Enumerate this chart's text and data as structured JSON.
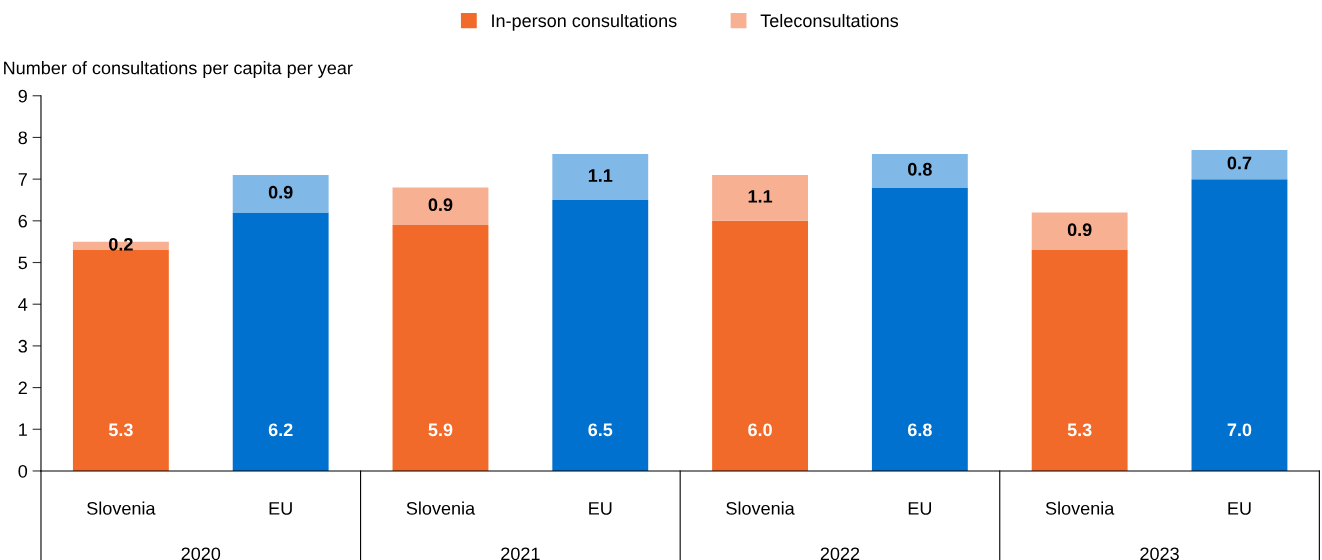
{
  "chart_data": {
    "type": "bar",
    "stacked": true,
    "ylabel": "Number of consultations per capita per year",
    "categories": [
      "Slovenia",
      "EU",
      "Slovenia",
      "EU",
      "Slovenia",
      "EU",
      "Slovenia",
      "EU"
    ],
    "annotations": [
      "2020",
      "2021",
      "2022",
      "2023"
    ],
    "series": [
      {
        "name": "In-person consultations",
        "color": "#f26a2a",
        "colors": [
          "#f26a2a",
          "#0071ce",
          "#f26a2a",
          "#0071ce",
          "#f26a2a",
          "#0071ce",
          "#f26a2a",
          "#0071ce"
        ],
        "values": [
          5.3,
          6.2,
          5.9,
          6.5,
          6.0,
          6.8,
          5.3,
          7.0
        ],
        "value_labels": [
          "5.3",
          "6.2",
          "5.9",
          "6.5",
          "6.0",
          "6.8",
          "5.3",
          "7.0"
        ]
      },
      {
        "name": "Teleconsultations",
        "color": "#f7b092",
        "colors": [
          "#f7b092",
          "#80b8e7",
          "#f7b092",
          "#80b8e7",
          "#f7b092",
          "#80b8e7",
          "#f7b092",
          "#80b8e7"
        ],
        "values": [
          0.2,
          0.9,
          0.9,
          1.1,
          1.1,
          0.8,
          0.9,
          0.7
        ],
        "value_labels": [
          "0.2",
          "0.9",
          "0.9",
          "1.1",
          "1.1",
          "0.8",
          "0.9",
          "0.7"
        ]
      }
    ],
    "ylim": [
      0,
      9
    ],
    "yticks": [
      0,
      1,
      2,
      3,
      4,
      5,
      6,
      7,
      8,
      9
    ],
    "grid": false,
    "legend": "top"
  }
}
